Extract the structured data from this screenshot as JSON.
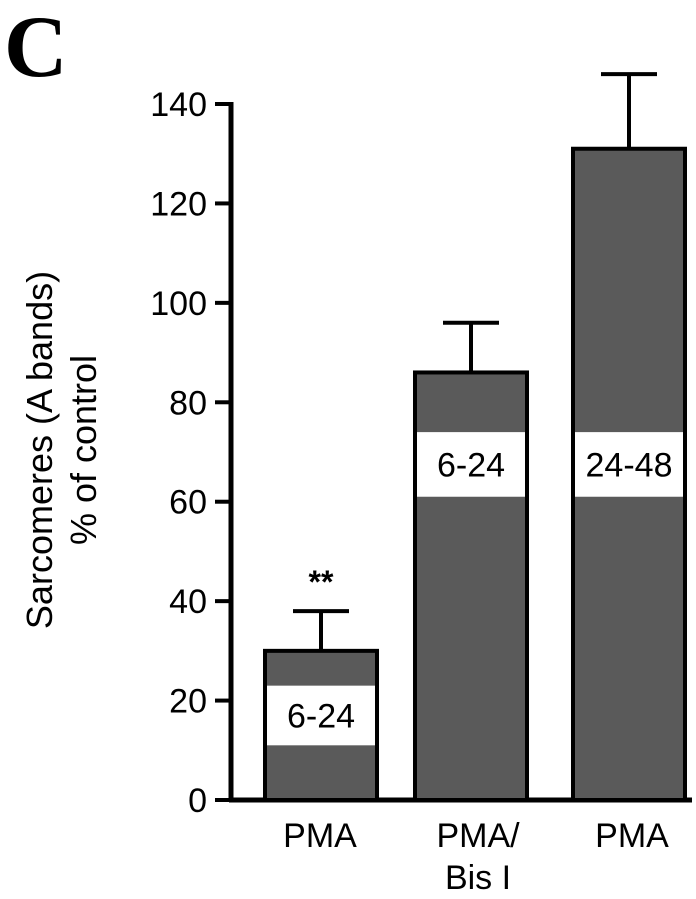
{
  "panel_label": "C",
  "chart_data": {
    "type": "bar",
    "title": "",
    "ylabel": [
      "Sarcomeres (A bands)",
      "% of control"
    ],
    "xlabel": "",
    "ylim": [
      0,
      140
    ],
    "yticks": [
      0,
      20,
      40,
      60,
      80,
      100,
      120,
      140
    ],
    "grid": false,
    "legend": "none",
    "categories": [
      [
        "PMA"
      ],
      [
        "PMA/",
        "Bis I"
      ],
      [
        "PMA"
      ]
    ],
    "values": [
      30,
      86,
      131
    ],
    "errors": [
      8,
      10,
      15
    ],
    "bar_labels": [
      "6-24",
      "6-24",
      "24-48"
    ],
    "bar_label_band": [
      [
        11,
        23
      ],
      [
        61,
        74
      ],
      [
        61,
        74
      ]
    ],
    "annotations": [
      "**",
      "",
      ""
    ],
    "bar_color": "#5a5a5a",
    "band_color": "#ffffff",
    "axis_color": "#000000"
  }
}
